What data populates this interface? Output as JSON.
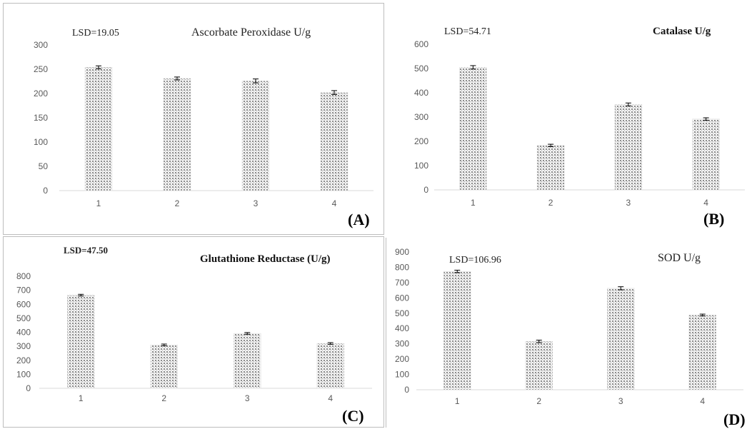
{
  "chart_data": [
    {
      "panel": "A",
      "type": "bar",
      "title": "Ascorbate Peroxidase U/g",
      "lsd": "LSD=19.05",
      "panel_label": "(A)",
      "categories": [
        "1",
        "2",
        "3",
        "4"
      ],
      "values": [
        254,
        231,
        226,
        202
      ],
      "errors": [
        3,
        3,
        4,
        4
      ],
      "ylim": [
        0,
        300
      ],
      "yticks": [
        0,
        50,
        100,
        150,
        200,
        250,
        300
      ],
      "xlabel": "",
      "ylabel": "",
      "grid": false,
      "bar_color": "#c9c9c9"
    },
    {
      "panel": "B",
      "type": "bar",
      "title": "Catalase  U/g",
      "lsd": "LSD=54.71",
      "panel_label": "(B)",
      "categories": [
        "1",
        "2",
        "3",
        "4"
      ],
      "values": [
        505,
        183,
        352,
        292
      ],
      "errors": [
        7,
        5,
        6,
        5
      ],
      "ylim": [
        0,
        600
      ],
      "yticks": [
        0,
        100,
        200,
        300,
        400,
        500,
        600
      ],
      "xlabel": "",
      "ylabel": "",
      "grid": false,
      "bar_color": "#b5b5b5"
    },
    {
      "panel": "C",
      "type": "bar",
      "title": "Glutathione Reductase (U/g)",
      "lsd": "LSD=47.50",
      "panel_label": "(C)",
      "categories": [
        "1",
        "2",
        "3",
        "4"
      ],
      "values": [
        665,
        310,
        392,
        320
      ],
      "errors": [
        6,
        6,
        6,
        6
      ],
      "ylim": [
        0,
        800
      ],
      "yticks": [
        0,
        100,
        200,
        300,
        400,
        500,
        600,
        700,
        800
      ],
      "xlabel": "",
      "ylabel": "",
      "grid": false,
      "bar_color": "#c4c4c4"
    },
    {
      "panel": "D",
      "type": "bar",
      "title": "SOD  U/g",
      "lsd": "LSD=106.96",
      "panel_label": "(D)",
      "categories": [
        "1",
        "2",
        "3",
        "4"
      ],
      "values": [
        773,
        316,
        663,
        488
      ],
      "errors": [
        8,
        8,
        10,
        6
      ],
      "ylim": [
        0,
        900
      ],
      "yticks": [
        0,
        100,
        200,
        300,
        400,
        500,
        600,
        700,
        800,
        900
      ],
      "xlabel": "",
      "ylabel": "",
      "grid": false,
      "bar_color": "#c4c4c4"
    }
  ]
}
